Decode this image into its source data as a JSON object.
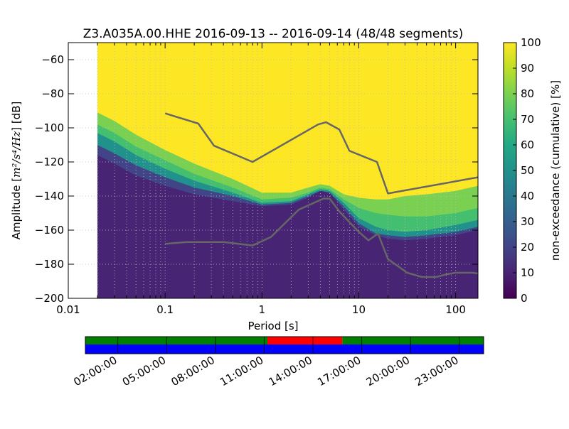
{
  "chart_data": [
    {
      "type": "heatmap",
      "title": "Z3.A035A.00.HHE   2016-09-13 -- 2016-09-14  (48/48 segments)",
      "xlabel": "Period [s]",
      "ylabel_prefix": "Amplitude [",
      "ylabel_unit": "m²/s⁴/Hz",
      "ylabel_suffix": "] [dB]",
      "x_scale": "log",
      "xlim": [
        0.01,
        170
      ],
      "ylim": [
        -200,
        -50
      ],
      "x_ticks": [
        0.01,
        0.1,
        1,
        10,
        100
      ],
      "x_tick_labels": [
        "0.01",
        "0.1",
        "1",
        "10",
        "100"
      ],
      "y_ticks": [
        -60,
        -80,
        -100,
        -120,
        -140,
        -160,
        -180,
        -200
      ],
      "y_tick_labels": [
        "−60",
        "−80",
        "−100",
        "−120",
        "−140",
        "−160",
        "−180",
        "−200"
      ],
      "grid": true,
      "data_period_min": 0.02,
      "colormap": "viridis",
      "colorbar": {
        "label": "non-exceedance (cumulative) [%]",
        "range": [
          0,
          100
        ],
        "ticks": [
          0,
          10,
          20,
          30,
          40,
          50,
          60,
          70,
          80,
          90,
          100
        ],
        "tick_labels": [
          "0",
          "10",
          "20",
          "30",
          "40",
          "50",
          "60",
          "70",
          "80",
          "90",
          "100"
        ]
      },
      "percentile_boundaries": [
        {
          "level": 10,
          "points": [
            [
              0.02,
              -116
            ],
            [
              0.03,
              -121
            ],
            [
              0.05,
              -128
            ],
            [
              0.1,
              -134
            ],
            [
              0.2,
              -139
            ],
            [
              0.5,
              -143
            ],
            [
              1,
              -146
            ],
            [
              2,
              -145
            ],
            [
              3,
              -141
            ],
            [
              4,
              -137
            ],
            [
              5,
              -138
            ],
            [
              7,
              -148
            ],
            [
              10,
              -158
            ],
            [
              15,
              -163
            ],
            [
              20,
              -165
            ],
            [
              30,
              -166
            ],
            [
              50,
              -165
            ],
            [
              100,
              -163
            ],
            [
              170,
              -160
            ]
          ]
        },
        {
          "level": 20,
          "points": [
            [
              0.02,
              -110
            ],
            [
              0.03,
              -115
            ],
            [
              0.05,
              -122
            ],
            [
              0.1,
              -129
            ],
            [
              0.2,
              -135
            ],
            [
              0.5,
              -140
            ],
            [
              1,
              -145
            ],
            [
              2,
              -144
            ],
            [
              3,
              -140
            ],
            [
              4,
              -137
            ],
            [
              5,
              -138
            ],
            [
              7,
              -146
            ],
            [
              10,
              -156
            ],
            [
              15,
              -162
            ],
            [
              20,
              -163
            ],
            [
              30,
              -164
            ],
            [
              50,
              -163
            ],
            [
              100,
              -161
            ],
            [
              170,
              -158
            ]
          ]
        },
        {
          "level": 50,
          "points": [
            [
              0.02,
              -103
            ],
            [
              0.03,
              -108
            ],
            [
              0.05,
              -116
            ],
            [
              0.1,
              -124
            ],
            [
              0.2,
              -131
            ],
            [
              0.5,
              -138
            ],
            [
              1,
              -144
            ],
            [
              2,
              -143
            ],
            [
              3,
              -139
            ],
            [
              4,
              -136
            ],
            [
              5,
              -137
            ],
            [
              7,
              -144
            ],
            [
              10,
              -153
            ],
            [
              15,
              -158
            ],
            [
              20,
              -160
            ],
            [
              30,
              -161
            ],
            [
              50,
              -160
            ],
            [
              100,
              -157
            ],
            [
              170,
              -154
            ]
          ]
        },
        {
          "level": 70,
          "points": [
            [
              0.02,
              -98
            ],
            [
              0.03,
              -103
            ],
            [
              0.05,
              -111
            ],
            [
              0.1,
              -119
            ],
            [
              0.2,
              -127
            ],
            [
              0.5,
              -135
            ],
            [
              1,
              -142
            ],
            [
              2,
              -141
            ],
            [
              3,
              -138
            ],
            [
              4,
              -135
            ],
            [
              5,
              -136
            ],
            [
              7,
              -142
            ],
            [
              10,
              -147
            ],
            [
              15,
              -150
            ],
            [
              20,
              -151
            ],
            [
              30,
              -152
            ],
            [
              50,
              -152
            ],
            [
              100,
              -150
            ],
            [
              170,
              -147
            ]
          ]
        },
        {
          "level": 90,
          "points": [
            [
              0.02,
              -91
            ],
            [
              0.03,
              -96
            ],
            [
              0.05,
              -104
            ],
            [
              0.1,
              -113
            ],
            [
              0.2,
              -121
            ],
            [
              0.5,
              -130
            ],
            [
              1,
              -138
            ],
            [
              2,
              -138
            ],
            [
              3,
              -135
            ],
            [
              4,
              -133
            ],
            [
              5,
              -134
            ],
            [
              7,
              -139
            ],
            [
              10,
              -141
            ],
            [
              15,
              -142
            ],
            [
              20,
              -142
            ],
            [
              30,
              -140
            ],
            [
              50,
              -139
            ],
            [
              100,
              -137
            ],
            [
              170,
              -134
            ]
          ]
        }
      ],
      "series": [
        {
          "color": "#666666",
          "points": [
            [
              0.1,
              -91.5
            ],
            [
              0.22,
              -97.5
            ],
            [
              0.32,
              -110.5
            ],
            [
              0.8,
              -120
            ],
            [
              3.8,
              -98
            ],
            [
              4.6,
              -96.7
            ],
            [
              6.3,
              -101
            ],
            [
              8,
              -113.5
            ],
            [
              15.4,
              -120
            ],
            [
              20,
              -138.5
            ],
            [
              170,
              -129
            ]
          ]
        },
        {
          "color": "#666666",
          "points": [
            [
              0.1,
              -168
            ],
            [
              0.17,
              -167
            ],
            [
              0.4,
              -167
            ],
            [
              0.8,
              -169
            ],
            [
              1.24,
              -164
            ],
            [
              2.4,
              -148
            ],
            [
              4.3,
              -141.5
            ],
            [
              5,
              -141.5
            ],
            [
              6.3,
              -149
            ],
            [
              7.9,
              -155
            ],
            [
              10,
              -161
            ],
            [
              12.6,
              -166
            ],
            [
              15.8,
              -162
            ],
            [
              20,
              -177
            ],
            [
              31.6,
              -185
            ],
            [
              44.7,
              -187.5
            ],
            [
              63,
              -187.5
            ],
            [
              79,
              -186
            ],
            [
              100,
              -185
            ],
            [
              150,
              -185
            ],
            [
              170,
              -185.5
            ]
          ]
        }
      ]
    },
    {
      "type": "timeline",
      "tick_labels": [
        "02:00:00",
        "05:00:00",
        "08:00:00",
        "11:00:00",
        "14:00:00",
        "17:00:00",
        "20:00:00",
        "23:00:00"
      ],
      "hours_start": 0,
      "hours_end": 24.5,
      "tick_hours": [
        2,
        5,
        8,
        11,
        14,
        17,
        20,
        23
      ],
      "top_row": [
        {
          "from": 0,
          "to": 11.2,
          "color": "#008000"
        },
        {
          "from": 11.2,
          "to": 15.8,
          "color": "#ff0000"
        },
        {
          "from": 15.8,
          "to": 24.5,
          "color": "#008000"
        }
      ],
      "bottom_row": [
        {
          "from": 0,
          "to": 24.5,
          "color": "#0000ff"
        }
      ]
    }
  ]
}
